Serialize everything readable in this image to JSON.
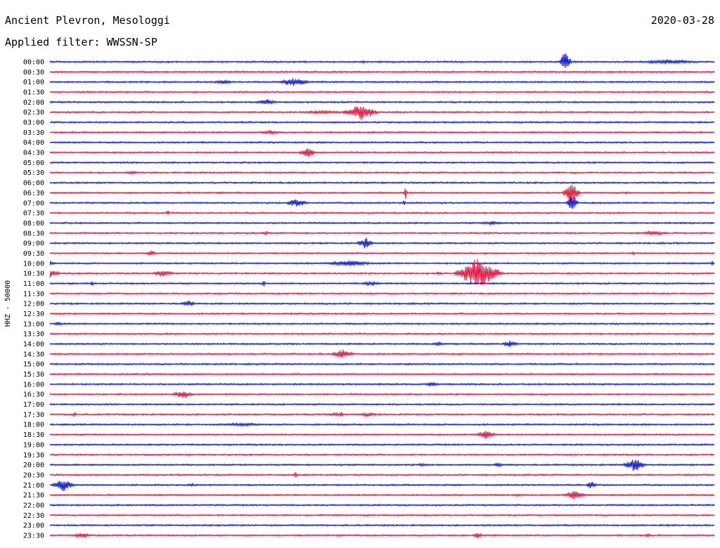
{
  "header": {
    "station": "Ancient Plevron, Mesologgi",
    "date": "2020-03-28",
    "filter": "Applied filter: WWSSN-SP"
  },
  "chart_data": {
    "type": "line",
    "subtype": "helicorder",
    "ylabel": "HHZ - 50000",
    "colors": {
      "even_trace": "#0a14d6",
      "odd_trace": "#e8103c"
    },
    "x": {
      "minutes_per_line": 30
    },
    "rows": [
      {
        "label": "00:00",
        "color": "#0a14d6",
        "events": [
          {
            "t": 0.472,
            "a": 3,
            "d": 0.004
          },
          {
            "t": 0.776,
            "a": 20,
            "d": 0.01
          },
          {
            "t": 0.93,
            "a": 4,
            "d": 0.06
          }
        ]
      },
      {
        "label": "00:30",
        "color": "#e8103c",
        "events": []
      },
      {
        "label": "01:00",
        "color": "#0a14d6",
        "events": [
          {
            "t": 0.262,
            "a": 4,
            "d": 0.02
          },
          {
            "t": 0.368,
            "a": 7,
            "d": 0.03
          }
        ]
      },
      {
        "label": "01:30",
        "color": "#e8103c",
        "events": []
      },
      {
        "label": "02:00",
        "color": "#0a14d6",
        "events": [
          {
            "t": 0.326,
            "a": 5,
            "d": 0.02
          }
        ]
      },
      {
        "label": "02:30",
        "color": "#e8103c",
        "events": [
          {
            "t": 0.41,
            "a": 3,
            "d": 0.06
          },
          {
            "t": 0.467,
            "a": 13,
            "d": 0.03
          }
        ]
      },
      {
        "label": "03:00",
        "color": "#0a14d6",
        "events": []
      },
      {
        "label": "03:30",
        "color": "#e8103c",
        "events": [
          {
            "t": 0.331,
            "a": 4,
            "d": 0.02
          }
        ]
      },
      {
        "label": "04:00",
        "color": "#0a14d6",
        "events": []
      },
      {
        "label": "04:30",
        "color": "#e8103c",
        "events": [
          {
            "t": 0.387,
            "a": 9,
            "d": 0.015
          }
        ]
      },
      {
        "label": "05:00",
        "color": "#0a14d6",
        "events": []
      },
      {
        "label": "05:30",
        "color": "#e8103c",
        "events": [
          {
            "t": 0.124,
            "a": 3,
            "d": 0.02
          }
        ]
      },
      {
        "label": "06:00",
        "color": "#0a14d6",
        "events": []
      },
      {
        "label": "06:30",
        "color": "#e8103c",
        "events": [
          {
            "t": 0.535,
            "a": 14,
            "d": 0.003
          },
          {
            "t": 0.784,
            "a": 18,
            "d": 0.015
          },
          {
            "t": 0.867,
            "a": 3,
            "d": 0.003
          }
        ]
      },
      {
        "label": "07:00",
        "color": "#0a14d6",
        "events": [
          {
            "t": 0.371,
            "a": 7,
            "d": 0.02
          },
          {
            "t": 0.533,
            "a": 6,
            "d": 0.003
          },
          {
            "t": 0.786,
            "a": 15,
            "d": 0.01
          }
        ]
      },
      {
        "label": "07:30",
        "color": "#e8103c",
        "events": [
          {
            "t": 0.178,
            "a": 6,
            "d": 0.003
          }
        ]
      },
      {
        "label": "08:00",
        "color": "#0a14d6",
        "events": [
          {
            "t": 0.666,
            "a": 3,
            "d": 0.03
          }
        ]
      },
      {
        "label": "08:30",
        "color": "#e8103c",
        "events": [
          {
            "t": 0.325,
            "a": 3,
            "d": 0.015
          },
          {
            "t": 0.91,
            "a": 4,
            "d": 0.03
          }
        ]
      },
      {
        "label": "09:00",
        "color": "#0a14d6",
        "events": [
          {
            "t": 0.475,
            "a": 9,
            "d": 0.015
          }
        ]
      },
      {
        "label": "09:30",
        "color": "#e8103c",
        "events": [
          {
            "t": 0.152,
            "a": 5,
            "d": 0.01
          },
          {
            "t": 0.878,
            "a": 3,
            "d": 0.005
          }
        ]
      },
      {
        "label": "10:00",
        "color": "#0a14d6",
        "events": [
          {
            "t": 0.0,
            "a": 5,
            "d": 0.01
          },
          {
            "t": 0.45,
            "a": 6,
            "d": 0.04
          },
          {
            "t": 0.997,
            "a": 6,
            "d": 0.003
          }
        ]
      },
      {
        "label": "10:30",
        "color": "#e8103c",
        "events": [
          {
            "t": 0.0,
            "a": 7,
            "d": 0.02
          },
          {
            "t": 0.17,
            "a": 6,
            "d": 0.02
          },
          {
            "t": 0.585,
            "a": 3,
            "d": 0.01
          },
          {
            "t": 0.645,
            "a": 24,
            "d": 0.04
          }
        ]
      },
      {
        "label": "11:00",
        "color": "#0a14d6",
        "events": [
          {
            "t": 0.063,
            "a": 6,
            "d": 0.003
          },
          {
            "t": 0.322,
            "a": 7,
            "d": 0.003
          },
          {
            "t": 0.484,
            "a": 4,
            "d": 0.02
          }
        ]
      },
      {
        "label": "11:30",
        "color": "#e8103c",
        "events": []
      },
      {
        "label": "12:00",
        "color": "#0a14d6",
        "events": [
          {
            "t": 0.208,
            "a": 5,
            "d": 0.015
          }
        ]
      },
      {
        "label": "12:30",
        "color": "#e8103c",
        "events": []
      },
      {
        "label": "13:00",
        "color": "#0a14d6",
        "events": [
          {
            "t": 0.012,
            "a": 3,
            "d": 0.01
          }
        ]
      },
      {
        "label": "13:30",
        "color": "#e8103c",
        "events": []
      },
      {
        "label": "14:00",
        "color": "#0a14d6",
        "events": [
          {
            "t": 0.585,
            "a": 4,
            "d": 0.01
          },
          {
            "t": 0.693,
            "a": 6,
            "d": 0.015
          }
        ]
      },
      {
        "label": "14:30",
        "color": "#e8103c",
        "events": [
          {
            "t": 0.44,
            "a": 8,
            "d": 0.02
          }
        ]
      },
      {
        "label": "15:00",
        "color": "#0a14d6",
        "events": []
      },
      {
        "label": "15:30",
        "color": "#e8103c",
        "events": []
      },
      {
        "label": "16:00",
        "color": "#0a14d6",
        "events": [
          {
            "t": 0.575,
            "a": 4,
            "d": 0.015
          }
        ]
      },
      {
        "label": "16:30",
        "color": "#e8103c",
        "events": [
          {
            "t": 0.2,
            "a": 7,
            "d": 0.02
          }
        ]
      },
      {
        "label": "17:00",
        "color": "#0a14d6",
        "events": []
      },
      {
        "label": "17:30",
        "color": "#e8103c",
        "events": [
          {
            "t": 0.037,
            "a": 4,
            "d": 0.005
          },
          {
            "t": 0.43,
            "a": 3,
            "d": 0.02
          },
          {
            "t": 0.438,
            "a": 6,
            "d": 0.004
          },
          {
            "t": 0.48,
            "a": 4,
            "d": 0.02
          }
        ]
      },
      {
        "label": "18:00",
        "color": "#0a14d6",
        "events": [
          {
            "t": 0.29,
            "a": 3,
            "d": 0.05
          }
        ]
      },
      {
        "label": "18:30",
        "color": "#e8103c",
        "events": [
          {
            "t": 0.656,
            "a": 8,
            "d": 0.02
          }
        ]
      },
      {
        "label": "19:00",
        "color": "#0a14d6",
        "events": []
      },
      {
        "label": "19:30",
        "color": "#e8103c",
        "events": []
      },
      {
        "label": "20:00",
        "color": "#0a14d6",
        "events": [
          {
            "t": 0.56,
            "a": 3,
            "d": 0.01
          },
          {
            "t": 0.675,
            "a": 4,
            "d": 0.01
          },
          {
            "t": 0.88,
            "a": 11,
            "d": 0.02
          }
        ]
      },
      {
        "label": "20:30",
        "color": "#e8103c",
        "events": [
          {
            "t": 0.37,
            "a": 5,
            "d": 0.004
          }
        ]
      },
      {
        "label": "21:00",
        "color": "#0a14d6",
        "events": [
          {
            "t": 0.02,
            "a": 11,
            "d": 0.02
          },
          {
            "t": 0.212,
            "a": 3,
            "d": 0.01
          },
          {
            "t": 0.815,
            "a": 7,
            "d": 0.01
          }
        ]
      },
      {
        "label": "21:30",
        "color": "#e8103c",
        "events": [
          {
            "t": 0.705,
            "a": 3,
            "d": 0.01
          },
          {
            "t": 0.79,
            "a": 8,
            "d": 0.02
          }
        ]
      },
      {
        "label": "22:00",
        "color": "#0a14d6",
        "events": []
      },
      {
        "label": "22:30",
        "color": "#e8103c",
        "events": []
      },
      {
        "label": "23:00",
        "color": "#0a14d6",
        "events": []
      },
      {
        "label": "23:30",
        "color": "#e8103c",
        "events": [
          {
            "t": 0.05,
            "a": 5,
            "d": 0.02
          },
          {
            "t": 0.643,
            "a": 6,
            "d": 0.01
          },
          {
            "t": 0.9,
            "a": 4,
            "d": 0.005
          }
        ]
      }
    ]
  }
}
